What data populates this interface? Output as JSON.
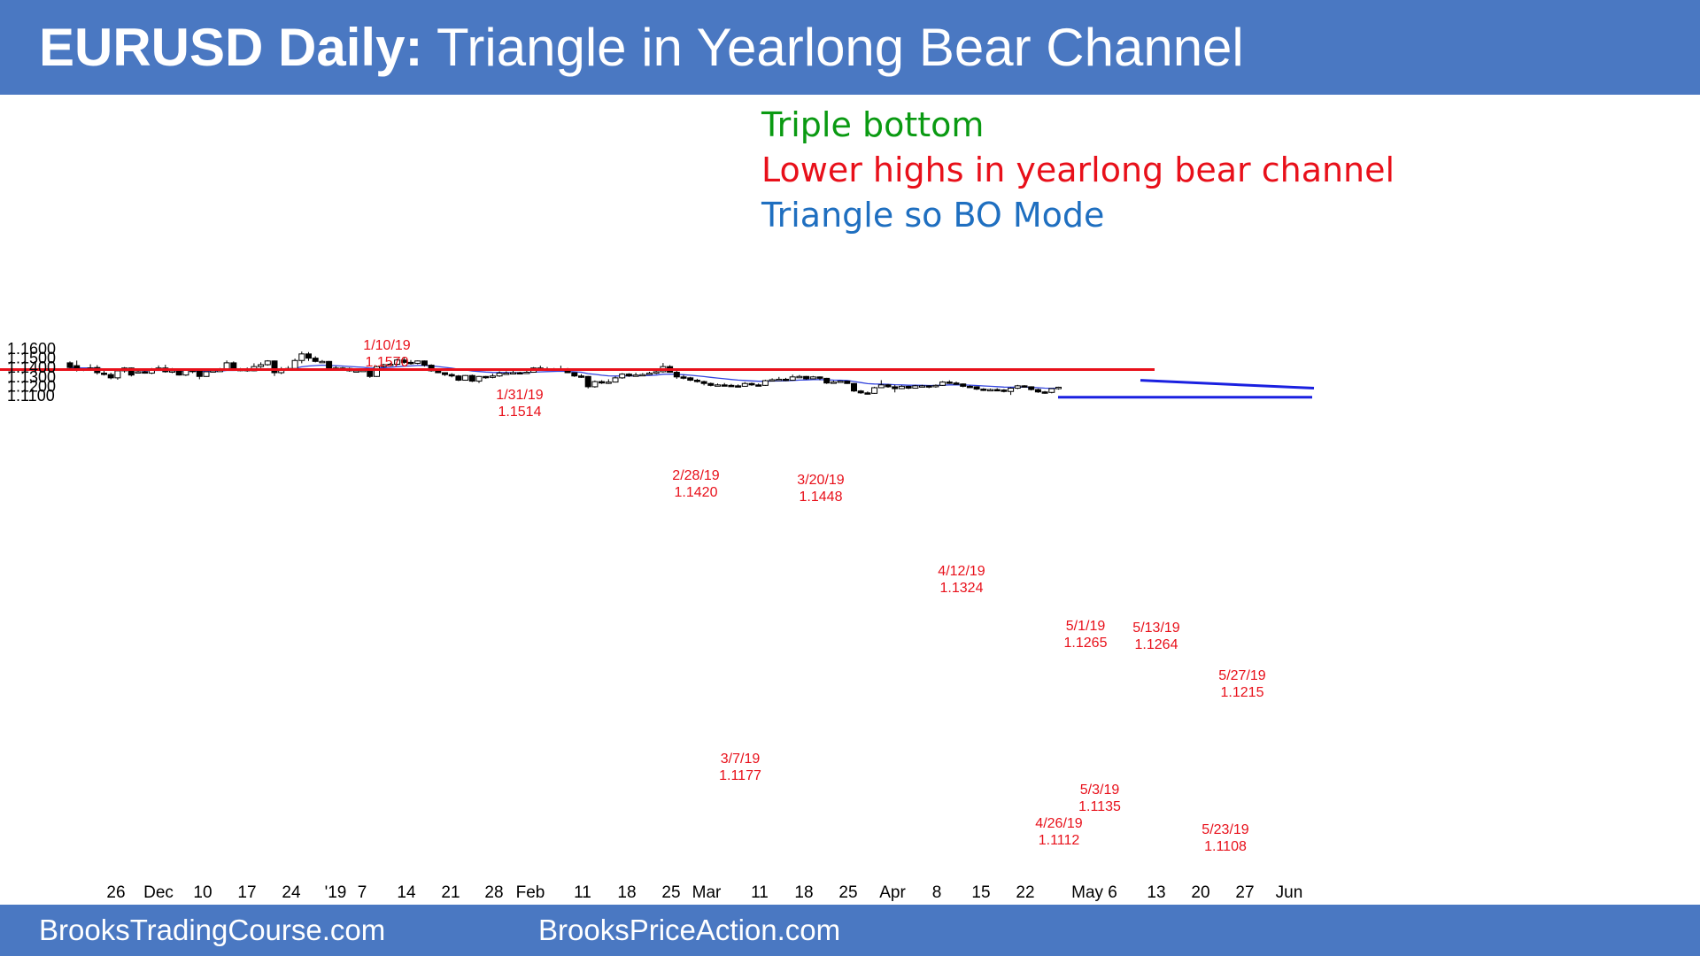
{
  "header": {
    "title_bold": "EURUSD Daily:",
    "title_rest": " Triangle in Yearlong Bear Channel"
  },
  "notes": [
    {
      "text": "Triple bottom",
      "color": "#0a9a12"
    },
    {
      "text": "Lower highs in yearlong bear channel",
      "color": "#e8101a"
    },
    {
      "text": "Triangle so BO Mode",
      "color": "#1f6fc0"
    }
  ],
  "footer": {
    "left": "BrooksTradingCourse.com",
    "right": "BrooksPriceAction.com"
  },
  "colors": {
    "header_bg": "#4a78c2",
    "annotation_red": "#e8101a",
    "moving_average": "#3344dd",
    "trendline_blue": "#1a20e0",
    "resistance_red": "#e8101a"
  },
  "chart_data": {
    "type": "candlestick",
    "title": "",
    "symbol": "EURUSD",
    "timeframe": "Daily",
    "yticks": [
      "1.1600",
      "1.1500",
      "1.1400",
      "1.1300",
      "1.1200",
      "1.1100"
    ],
    "ylim": [
      1.102,
      1.164
    ],
    "xticks": [
      "26",
      "Dec",
      "10",
      "17",
      "24",
      "'19",
      "7",
      "14",
      "21",
      "28",
      "Feb",
      "11",
      "18",
      "25",
      "Mar",
      "11",
      "18",
      "25",
      "Apr",
      "8",
      "15",
      "22",
      "May 6",
      "13",
      "20",
      "27",
      "Jun"
    ],
    "moving_average": "20-bar EMA",
    "annotations": [
      {
        "date": "1/10/19",
        "price": "1.1570",
        "position": "above"
      },
      {
        "date": "1/31/19",
        "price": "1.1514",
        "position": "above"
      },
      {
        "date": "2/28/19",
        "price": "1.1420",
        "position": "above"
      },
      {
        "date": "3/20/19",
        "price": "1.1448",
        "position": "above"
      },
      {
        "date": "3/7/19",
        "price": "1.1177",
        "position": "below"
      },
      {
        "date": "4/12/19",
        "price": "1.1324",
        "position": "above"
      },
      {
        "date": "5/1/19",
        "price": "1.1265",
        "position": "above"
      },
      {
        "date": "5/13/19",
        "price": "1.1264",
        "position": "above"
      },
      {
        "date": "5/27/19",
        "price": "1.1215",
        "position": "above"
      },
      {
        "date": "5/3/19",
        "price": "1.1135",
        "position": "below"
      },
      {
        "date": "4/26/19",
        "price": "1.1112",
        "position": "below"
      },
      {
        "date": "5/23/19",
        "price": "1.1108",
        "position": "below"
      }
    ],
    "lines": [
      {
        "name": "double-top resistance",
        "color": "#e8101a",
        "from_date": "5/1/19",
        "to_date": "5/13/19",
        "price": 1.1265
      },
      {
        "name": "triangle upper trendline",
        "color": "#1a20e0",
        "from_date": "5/13/19",
        "to_date": "6/3/19",
        "from_price": 1.1264,
        "to_price": 1.118
      },
      {
        "name": "triangle support line",
        "color": "#1a20e0",
        "from_date": "4/26/19",
        "to_date": "6/3/19",
        "price": 1.1112
      }
    ],
    "candles": [
      [
        1.145,
        1.14,
        1.1465,
        1.1375
      ],
      [
        1.142,
        1.137,
        1.1474,
        1.1358
      ],
      [
        1.137,
        1.1385,
        1.1392,
        1.1362
      ],
      [
        1.1395,
        1.1385,
        1.1435,
        1.1378
      ],
      [
        1.14,
        1.1345,
        1.1425,
        1.1325
      ],
      [
        1.134,
        1.133,
        1.1375,
        1.1315
      ],
      [
        1.1325,
        1.129,
        1.1345,
        1.1275
      ],
      [
        1.129,
        1.1365,
        1.1378,
        1.127
      ],
      [
        1.1365,
        1.1395,
        1.1405,
        1.1345
      ],
      [
        1.1395,
        1.132,
        1.14,
        1.1305
      ],
      [
        1.135,
        1.1355,
        1.1372,
        1.134
      ],
      [
        1.1355,
        1.134,
        1.1375,
        1.1335
      ],
      [
        1.134,
        1.138,
        1.1395,
        1.133
      ],
      [
        1.138,
        1.1395,
        1.1422,
        1.137
      ],
      [
        1.1395,
        1.1355,
        1.143,
        1.1345
      ],
      [
        1.1355,
        1.1365,
        1.1395,
        1.134
      ],
      [
        1.1365,
        1.132,
        1.138,
        1.1315
      ],
      [
        1.132,
        1.137,
        1.1375,
        1.131
      ],
      [
        1.137,
        1.136,
        1.138,
        1.134
      ],
      [
        1.136,
        1.1305,
        1.1365,
        1.1275
      ],
      [
        1.1305,
        1.1355,
        1.136,
        1.13
      ],
      [
        1.1355,
        1.1365,
        1.1375,
        1.135
      ],
      [
        1.1365,
        1.137,
        1.1395,
        1.136
      ],
      [
        1.137,
        1.145,
        1.1475,
        1.1365
      ],
      [
        1.145,
        1.1375,
        1.1465,
        1.137
      ],
      [
        1.1375,
        1.138,
        1.1395,
        1.136
      ],
      [
        1.138,
        1.1365,
        1.14,
        1.1355
      ],
      [
        1.1365,
        1.141,
        1.1445,
        1.136
      ],
      [
        1.141,
        1.143,
        1.1455,
        1.1395
      ],
      [
        1.143,
        1.147,
        1.1478,
        1.142
      ],
      [
        1.147,
        1.1345,
        1.1475,
        1.131
      ],
      [
        1.1345,
        1.1385,
        1.1405,
        1.133
      ],
      [
        1.1385,
        1.139,
        1.1415,
        1.137
      ],
      [
        1.139,
        1.1475,
        1.1495,
        1.1385
      ],
      [
        1.1475,
        1.1545,
        1.157,
        1.1445
      ],
      [
        1.1545,
        1.15,
        1.1565,
        1.147
      ],
      [
        1.15,
        1.1465,
        1.152,
        1.1455
      ],
      [
        1.1465,
        1.1465,
        1.148,
        1.1455
      ],
      [
        1.1465,
        1.1385,
        1.147,
        1.1375
      ],
      [
        1.1385,
        1.1395,
        1.1415,
        1.137
      ],
      [
        1.1395,
        1.139,
        1.1405,
        1.1365
      ],
      [
        1.139,
        1.1365,
        1.14,
        1.1355
      ],
      [
        1.1365,
        1.1365,
        1.1375,
        1.135
      ],
      [
        1.1365,
        1.137,
        1.1385,
        1.1355
      ],
      [
        1.137,
        1.1305,
        1.1375,
        1.129
      ],
      [
        1.1305,
        1.141,
        1.142,
        1.13
      ],
      [
        1.141,
        1.143,
        1.144,
        1.14
      ],
      [
        1.143,
        1.1435,
        1.145,
        1.141
      ],
      [
        1.1435,
        1.148,
        1.1495,
        1.1425
      ],
      [
        1.148,
        1.1455,
        1.1514,
        1.144
      ],
      [
        1.1455,
        1.1445,
        1.148,
        1.143
      ],
      [
        1.1445,
        1.147,
        1.1475,
        1.1435
      ],
      [
        1.147,
        1.1425,
        1.1475,
        1.141
      ],
      [
        1.1425,
        1.1365,
        1.1435,
        1.1355
      ],
      [
        1.1365,
        1.1345,
        1.1375,
        1.134
      ],
      [
        1.1345,
        1.1325,
        1.135,
        1.131
      ],
      [
        1.1325,
        1.131,
        1.134,
        1.1295
      ],
      [
        1.131,
        1.1265,
        1.132,
        1.1255
      ],
      [
        1.1265,
        1.1315,
        1.132,
        1.126
      ],
      [
        1.1315,
        1.1255,
        1.1325,
        1.1245
      ],
      [
        1.1255,
        1.1305,
        1.131,
        1.1235
      ],
      [
        1.1305,
        1.1295,
        1.131,
        1.128
      ],
      [
        1.1295,
        1.131,
        1.1335,
        1.1285
      ],
      [
        1.131,
        1.134,
        1.136,
        1.13
      ],
      [
        1.134,
        1.134,
        1.136,
        1.1325
      ],
      [
        1.134,
        1.1345,
        1.1365,
        1.133
      ],
      [
        1.1345,
        1.134,
        1.1355,
        1.1335
      ],
      [
        1.134,
        1.135,
        1.1375,
        1.1335
      ],
      [
        1.135,
        1.1395,
        1.1405,
        1.1345
      ],
      [
        1.1395,
        1.138,
        1.142,
        1.137
      ],
      [
        1.138,
        1.1385,
        1.1405,
        1.137
      ],
      [
        1.1385,
        1.1375,
        1.1395,
        1.1365
      ],
      [
        1.1375,
        1.1385,
        1.142,
        1.137
      ],
      [
        1.1385,
        1.1345,
        1.1395,
        1.134
      ],
      [
        1.1345,
        1.131,
        1.135,
        1.13
      ],
      [
        1.131,
        1.1305,
        1.133,
        1.129
      ],
      [
        1.1305,
        1.1195,
        1.131,
        1.1177
      ],
      [
        1.1195,
        1.125,
        1.1262,
        1.1185
      ],
      [
        1.125,
        1.1235,
        1.1265,
        1.1225
      ],
      [
        1.1235,
        1.1245,
        1.1275,
        1.1225
      ],
      [
        1.1245,
        1.129,
        1.1305,
        1.124
      ],
      [
        1.129,
        1.133,
        1.134,
        1.128
      ],
      [
        1.133,
        1.131,
        1.134,
        1.13
      ],
      [
        1.131,
        1.132,
        1.1345,
        1.1305
      ],
      [
        1.132,
        1.1325,
        1.134,
        1.131
      ],
      [
        1.1325,
        1.134,
        1.1355,
        1.132
      ],
      [
        1.134,
        1.1355,
        1.137,
        1.133
      ],
      [
        1.1355,
        1.141,
        1.1448,
        1.1345
      ],
      [
        1.141,
        1.135,
        1.1425,
        1.1345
      ],
      [
        1.135,
        1.13,
        1.137,
        1.128
      ],
      [
        1.13,
        1.129,
        1.132,
        1.1275
      ],
      [
        1.129,
        1.1265,
        1.13,
        1.1255
      ],
      [
        1.1265,
        1.125,
        1.128,
        1.124
      ],
      [
        1.125,
        1.123,
        1.126,
        1.121
      ],
      [
        1.123,
        1.121,
        1.124,
        1.12
      ],
      [
        1.121,
        1.1215,
        1.123,
        1.12
      ],
      [
        1.1215,
        1.121,
        1.1235,
        1.12
      ],
      [
        1.121,
        1.1205,
        1.1225,
        1.1195
      ],
      [
        1.1205,
        1.12,
        1.122,
        1.119
      ],
      [
        1.12,
        1.123,
        1.1245,
        1.1195
      ],
      [
        1.123,
        1.1215,
        1.124,
        1.1205
      ],
      [
        1.1215,
        1.121,
        1.123,
        1.12
      ],
      [
        1.121,
        1.126,
        1.127,
        1.1205
      ],
      [
        1.126,
        1.127,
        1.1285,
        1.1255
      ],
      [
        1.127,
        1.1275,
        1.13,
        1.126
      ],
      [
        1.1275,
        1.1265,
        1.129,
        1.1255
      ],
      [
        1.1265,
        1.13,
        1.1324,
        1.126
      ],
      [
        1.13,
        1.1305,
        1.132,
        1.129
      ],
      [
        1.1305,
        1.128,
        1.131,
        1.127
      ],
      [
        1.128,
        1.13,
        1.131,
        1.1275
      ],
      [
        1.13,
        1.1285,
        1.1305,
        1.1265
      ],
      [
        1.1285,
        1.1235,
        1.129,
        1.1225
      ],
      [
        1.1235,
        1.1245,
        1.126,
        1.123
      ],
      [
        1.1245,
        1.1255,
        1.1262,
        1.124
      ],
      [
        1.1255,
        1.123,
        1.126,
        1.1225
      ],
      [
        1.123,
        1.115,
        1.1235,
        1.114
      ],
      [
        1.115,
        1.113,
        1.116,
        1.112
      ],
      [
        1.113,
        1.1125,
        1.1145,
        1.1112
      ],
      [
        1.1125,
        1.1185,
        1.1195,
        1.112
      ],
      [
        1.1185,
        1.1215,
        1.1265,
        1.118
      ],
      [
        1.1215,
        1.1195,
        1.1225,
        1.1185
      ],
      [
        1.1195,
        1.1175,
        1.1215,
        1.1135
      ],
      [
        1.1175,
        1.12,
        1.121,
        1.117
      ],
      [
        1.12,
        1.118,
        1.1205,
        1.117
      ],
      [
        1.118,
        1.1205,
        1.1215,
        1.1175
      ],
      [
        1.1205,
        1.1205,
        1.1215,
        1.1195
      ],
      [
        1.1205,
        1.1195,
        1.121,
        1.118
      ],
      [
        1.1195,
        1.121,
        1.122,
        1.1185
      ],
      [
        1.121,
        1.1245,
        1.1255,
        1.1205
      ],
      [
        1.1245,
        1.1235,
        1.1264,
        1.1225
      ],
      [
        1.1235,
        1.1225,
        1.125,
        1.1215
      ],
      [
        1.1225,
        1.12,
        1.123,
        1.119
      ],
      [
        1.12,
        1.1195,
        1.121,
        1.1185
      ],
      [
        1.1195,
        1.117,
        1.12,
        1.116
      ],
      [
        1.117,
        1.116,
        1.118,
        1.115
      ],
      [
        1.116,
        1.1165,
        1.1175,
        1.115
      ],
      [
        1.1165,
        1.116,
        1.118,
        1.115
      ],
      [
        1.116,
        1.1145,
        1.117,
        1.1135
      ],
      [
        1.1145,
        1.118,
        1.119,
        1.1108
      ],
      [
        1.118,
        1.1205,
        1.1215,
        1.117
      ],
      [
        1.1205,
        1.1195,
        1.1212,
        1.1185
      ],
      [
        1.1195,
        1.1165,
        1.12,
        1.1155
      ],
      [
        1.1165,
        1.114,
        1.1175,
        1.113
      ],
      [
        1.114,
        1.1135,
        1.115,
        1.112
      ],
      [
        1.1135,
        1.1175,
        1.118,
        1.1125
      ],
      [
        1.1175,
        1.119,
        1.1195,
        1.1165
      ]
    ]
  }
}
